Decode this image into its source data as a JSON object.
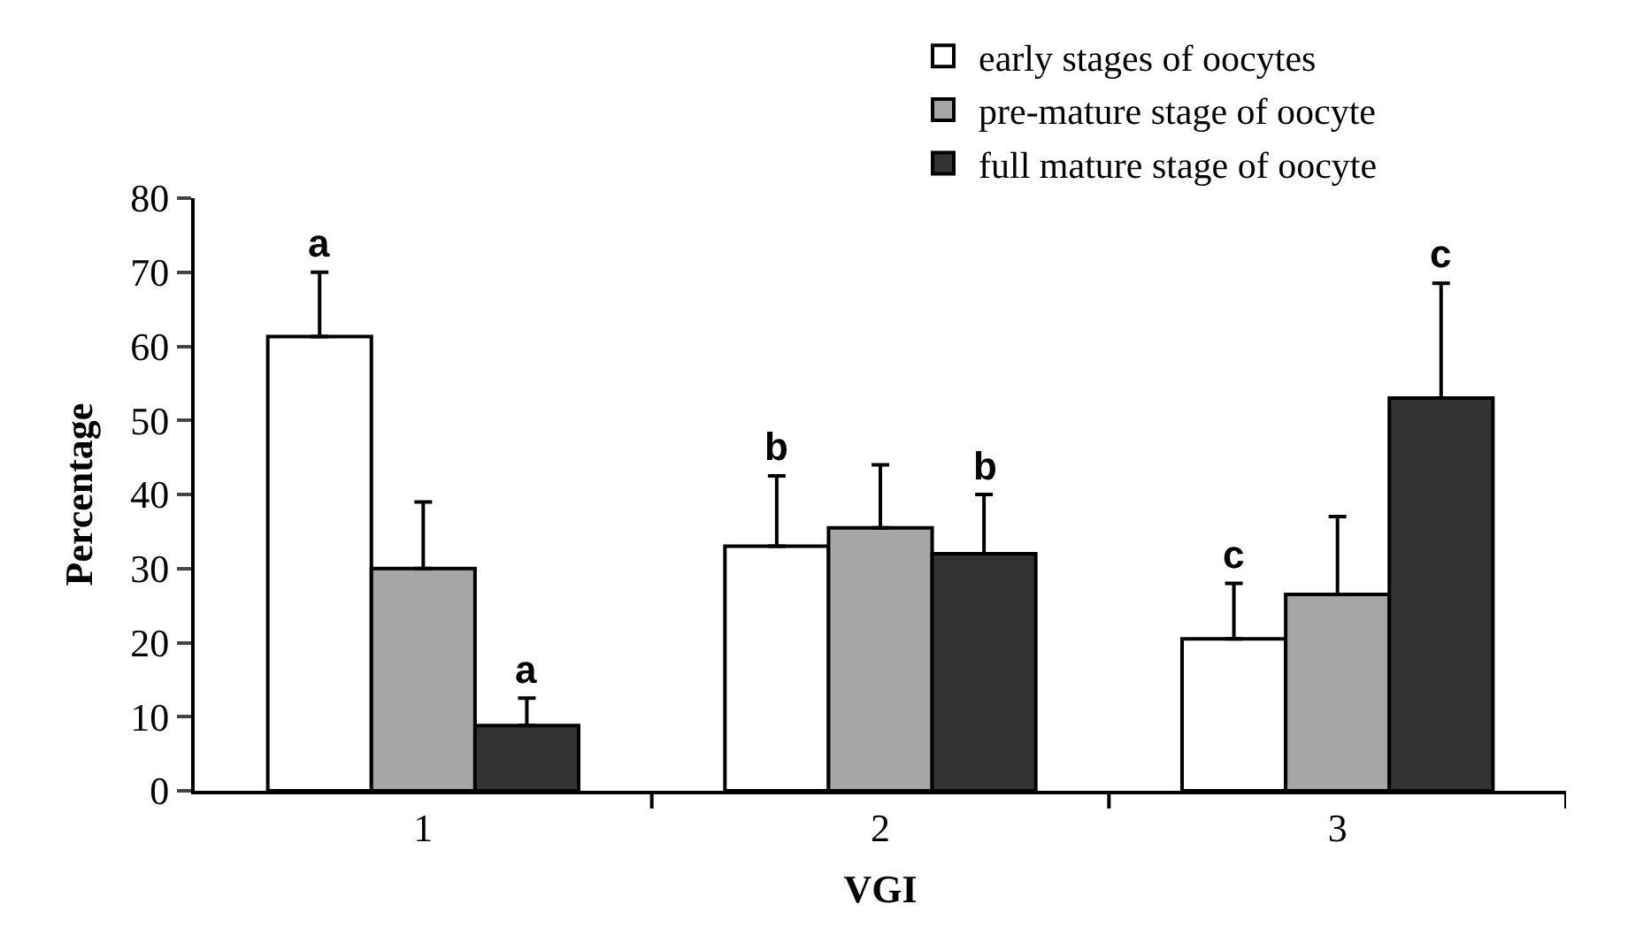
{
  "chart_data": {
    "type": "bar",
    "xlabel": "VGI",
    "ylabel": "Percentage",
    "categories": [
      "1",
      "2",
      "3"
    ],
    "series": [
      {
        "name": "early stages of oocytes",
        "color": "#ffffff",
        "values": [
          61.3,
          33,
          20.5
        ],
        "errors": [
          [
            61.3,
            70
          ],
          [
            33,
            42.5
          ],
          [
            20.5,
            28
          ]
        ],
        "value_labels": [
          "a",
          "b",
          "c"
        ]
      },
      {
        "name": "pre-mature stage of oocyte",
        "color": "#a6a6a6",
        "values": [
          30,
          35.5,
          26.5
        ],
        "errors": [
          [
            30,
            39
          ],
          [
            35.5,
            44
          ],
          [
            26.5,
            37
          ]
        ],
        "value_labels": [
          null,
          null,
          null
        ]
      },
      {
        "name": "full mature stage of oocyte",
        "color": "#333333",
        "values": [
          8.8,
          32,
          53
        ],
        "errors": [
          [
            8.8,
            12.5
          ],
          [
            32,
            40
          ],
          [
            53,
            68.5
          ]
        ],
        "value_labels": [
          "a",
          "b",
          "c"
        ]
      }
    ],
    "ylim": [
      0,
      80
    ],
    "yticks": [
      0,
      10,
      20,
      30,
      40,
      50,
      60,
      70,
      80
    ],
    "legend": "top right"
  }
}
